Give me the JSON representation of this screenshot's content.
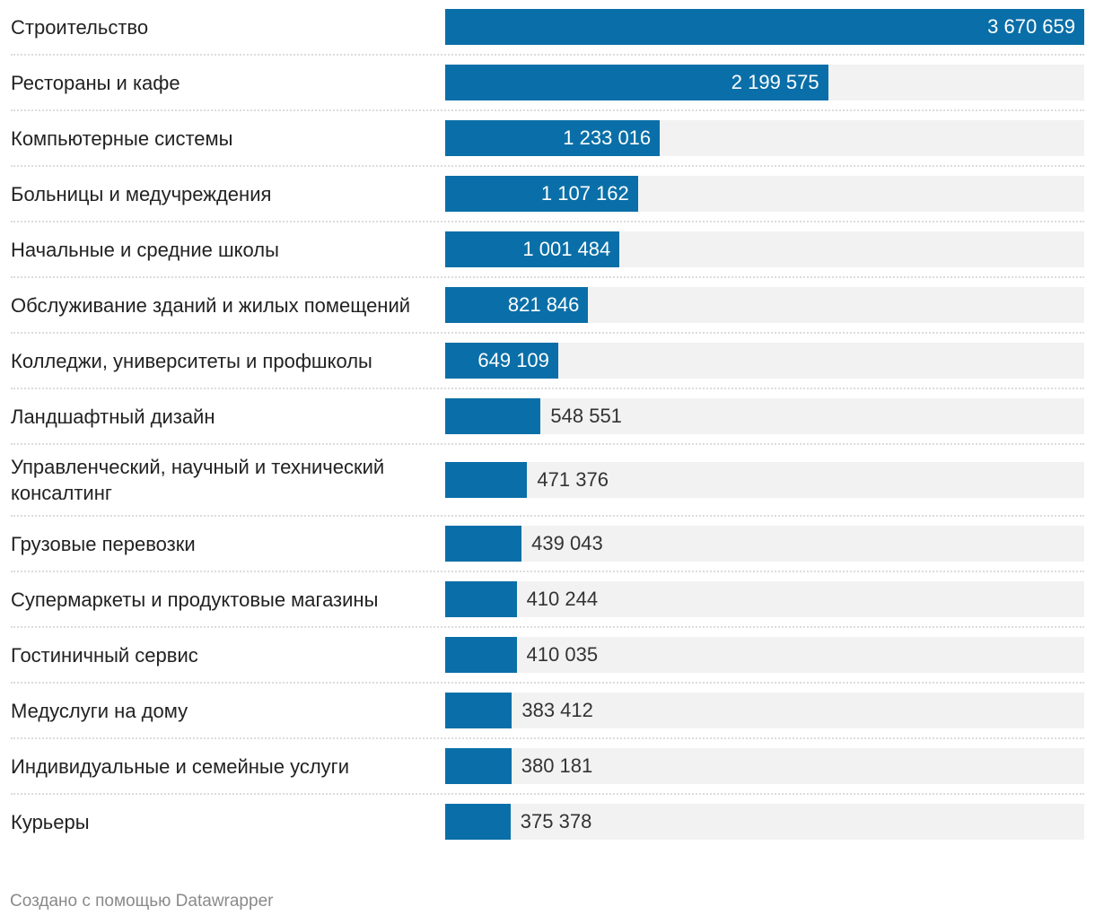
{
  "chart_data": {
    "type": "bar",
    "orientation": "horizontal",
    "bar_color": "#0a6fa8",
    "track_color": "#f2f2f2",
    "categories": [
      "Строительство",
      "Рестораны и кафе",
      "Компьютерные системы",
      "Больницы и медучреждения",
      "Начальные и средние школы",
      "Обслуживание зданий и жилых помещений",
      "Колледжи, университеты и профшколы",
      "Ландшафтный дизайн",
      "Управленческий, научный и технический консалтинг",
      "Грузовые перевозки",
      "Супермаркеты и продуктовые магазины",
      "Гостиничный сервис",
      "Медуслуги на дому",
      "Индивидуальные и семейные услуги",
      "Курьеры"
    ],
    "values": [
      3670659,
      2199575,
      1233016,
      1107162,
      1001484,
      821846,
      649109,
      548551,
      471376,
      439043,
      410244,
      410035,
      383412,
      380181,
      375378
    ],
    "value_labels": [
      "3 670 659",
      "2 199 575",
      "1 233 016",
      "1 107 162",
      "1 001 484",
      "821 846",
      "649 109",
      "548 551",
      "471 376",
      "439 043",
      "410 244",
      "410 035",
      "383 412",
      "380 181",
      "375 378"
    ],
    "xlim": [
      0,
      3670659
    ]
  },
  "footer": "Создано с помощью Datawrapper"
}
